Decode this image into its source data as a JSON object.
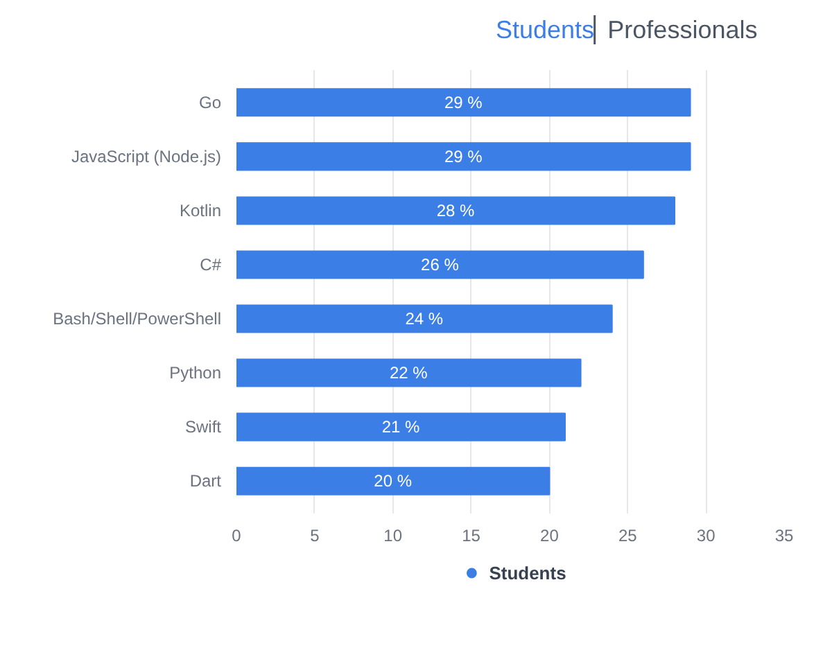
{
  "chart_data": {
    "type": "bar",
    "orientation": "horizontal",
    "categories": [
      "Go",
      "JavaScript (Node.js)",
      "Kotlin",
      "C#",
      "Bash/Shell/PowerShell",
      "Python",
      "Swift",
      "Dart"
    ],
    "series": [
      {
        "name": "Students",
        "color": "#3b7ee6",
        "values": [
          29,
          29,
          28,
          26,
          24,
          22,
          21,
          20
        ],
        "value_labels": [
          "29 %",
          "29 %",
          "28 %",
          "26 %",
          "24 %",
          "22 %",
          "21 %",
          "20 %"
        ]
      }
    ],
    "xlim": [
      0,
      35
    ],
    "xticks": [
      0,
      5,
      10,
      15,
      20,
      25,
      30,
      35
    ],
    "grid": "x",
    "legend": "bottom",
    "annotations": [
      "Students",
      "Professionals"
    ]
  }
}
